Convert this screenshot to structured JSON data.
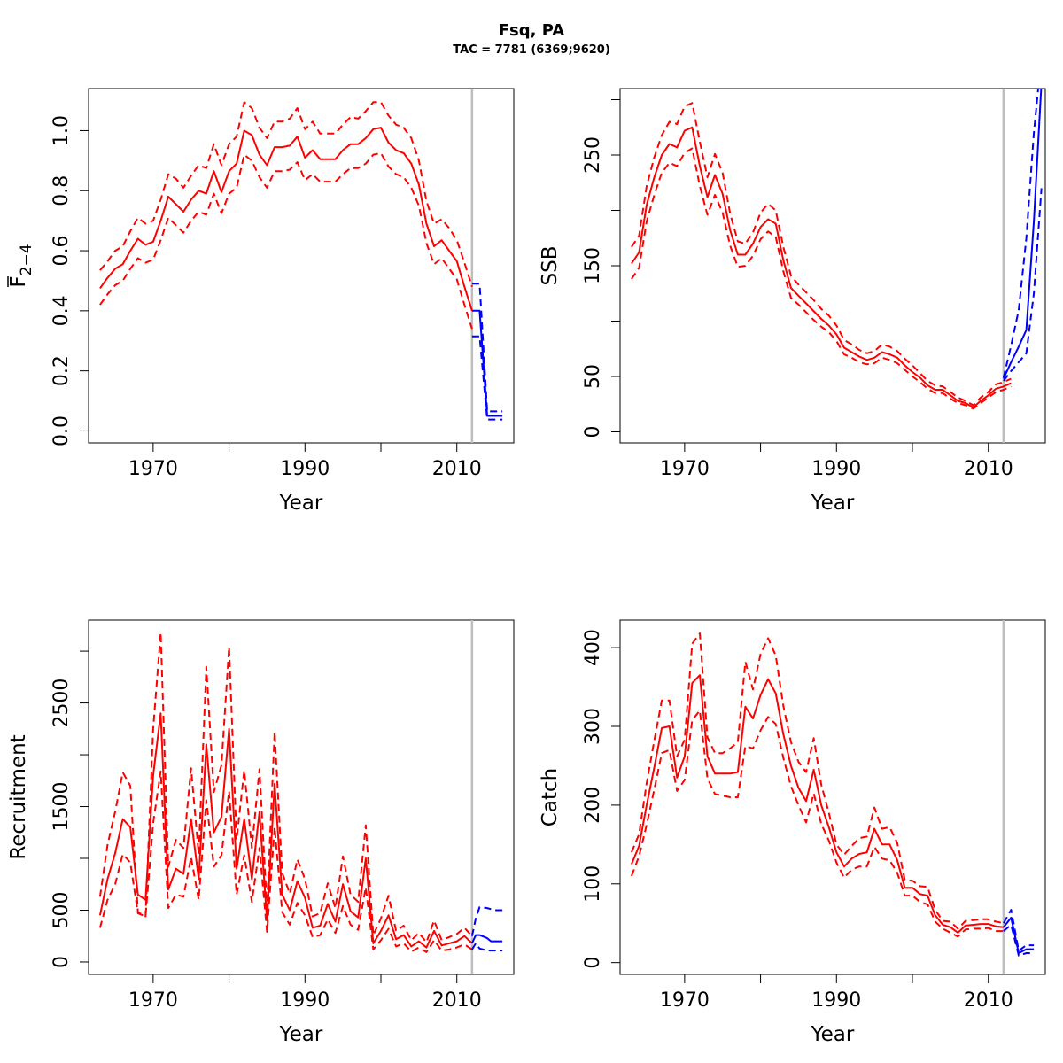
{
  "figure": {
    "title": "Fsq, PA",
    "subtitle": "TAC = 7781 (6369;9620)"
  },
  "colors": {
    "history": "#ff0000",
    "forecast": "#0000ff",
    "divider": "#bebebe",
    "axis": "#000000"
  },
  "chart_data": [
    {
      "id": "fbar",
      "type": "line",
      "xlabel": "Year",
      "ylabel_main": "F",
      "ylabel_sub": "2−4",
      "ylabel_overbar": true,
      "xlim": [
        1961.5,
        2017.5
      ],
      "ylim": [
        -0.04,
        1.14
      ],
      "xticks": [
        1960,
        1970,
        1980,
        1990,
        2000,
        2010
      ],
      "xtick_labels": [
        "",
        "1970",
        "",
        "1990",
        "",
        "2010"
      ],
      "yticks": [
        0,
        0.2,
        0.4,
        0.6,
        0.8,
        1.0
      ],
      "ytick_labels": [
        "0.0",
        "0.2",
        "0.4",
        "0.6",
        "0.8",
        "1.0"
      ],
      "divider_x": 2012,
      "series": [
        {
          "role": "history",
          "style": "solid",
          "x_start": 1963,
          "values": [
            0.475,
            0.51,
            0.54,
            0.555,
            0.6,
            0.64,
            0.62,
            0.63,
            0.7,
            0.78,
            0.755,
            0.73,
            0.77,
            0.8,
            0.79,
            0.865,
            0.795,
            0.865,
            0.89,
            1.0,
            0.985,
            0.92,
            0.885,
            0.945,
            0.945,
            0.95,
            0.98,
            0.91,
            0.935,
            0.905,
            0.905,
            0.905,
            0.935,
            0.955,
            0.955,
            0.975,
            1.005,
            1.01,
            0.96,
            0.935,
            0.925,
            0.89,
            0.82,
            0.69,
            0.615,
            0.635,
            0.6,
            0.565,
            0.48,
            0.4
          ]
        },
        {
          "role": "history",
          "style": "dashed",
          "x_start": 1963,
          "values": [
            0.535,
            0.565,
            0.6,
            0.615,
            0.665,
            0.71,
            0.69,
            0.7,
            0.77,
            0.855,
            0.84,
            0.81,
            0.85,
            0.885,
            0.875,
            0.955,
            0.885,
            0.955,
            0.98,
            1.095,
            1.075,
            1.01,
            0.975,
            1.03,
            1.03,
            1.04,
            1.075,
            1.005,
            1.03,
            0.99,
            0.99,
            0.99,
            1.02,
            1.045,
            1.04,
            1.065,
            1.095,
            1.095,
            1.05,
            1.02,
            1.01,
            0.975,
            0.9,
            0.765,
            0.69,
            0.705,
            0.675,
            0.635,
            0.56,
            0.48
          ]
        },
        {
          "role": "history",
          "style": "dashed",
          "x_start": 1963,
          "values": [
            0.42,
            0.455,
            0.485,
            0.5,
            0.54,
            0.575,
            0.56,
            0.57,
            0.635,
            0.71,
            0.685,
            0.66,
            0.7,
            0.73,
            0.72,
            0.79,
            0.725,
            0.79,
            0.81,
            0.92,
            0.9,
            0.845,
            0.81,
            0.865,
            0.865,
            0.87,
            0.895,
            0.835,
            0.855,
            0.83,
            0.83,
            0.83,
            0.855,
            0.875,
            0.875,
            0.89,
            0.92,
            0.925,
            0.88,
            0.855,
            0.845,
            0.81,
            0.75,
            0.625,
            0.555,
            0.575,
            0.54,
            0.505,
            0.42,
            0.34
          ]
        },
        {
          "role": "forecast",
          "style": "solid",
          "x_points": [
            2012,
            2012,
            2013,
            2013,
            2014,
            2014,
            2016
          ],
          "values": [
            0.4,
            0.4,
            0.4,
            0.4,
            0.05,
            0.05,
            0.05
          ]
        },
        {
          "role": "forecast",
          "style": "dashed",
          "x_points": [
            2012,
            2012,
            2013,
            2013,
            2014,
            2014,
            2016
          ],
          "values": [
            0.49,
            0.49,
            0.49,
            0.49,
            0.065,
            0.065,
            0.065
          ]
        },
        {
          "role": "forecast",
          "style": "dashed",
          "x_points": [
            2012,
            2012,
            2013,
            2013,
            2014,
            2014,
            2016
          ],
          "values": [
            0.315,
            0.315,
            0.315,
            0.315,
            0.038,
            0.038,
            0.038
          ]
        }
      ]
    },
    {
      "id": "ssb",
      "type": "line",
      "xlabel": "Year",
      "ylabel": "SSB",
      "xlim": [
        1961.5,
        2017.5
      ],
      "ylim": [
        -10,
        310
      ],
      "xticks": [
        1960,
        1970,
        1980,
        1990,
        2000,
        2010
      ],
      "xtick_labels": [
        "",
        "1970",
        "",
        "1990",
        "",
        "2010"
      ],
      "yticks": [
        0,
        50,
        100,
        150,
        200,
        250,
        300
      ],
      "ytick_labels": [
        "0",
        "50",
        "",
        "150",
        "",
        "250",
        ""
      ],
      "divider_x": 2012,
      "series": [
        {
          "role": "history",
          "style": "solid",
          "x_start": 1963,
          "values": [
            152,
            162,
            205,
            230,
            250,
            260,
            257,
            272,
            275,
            240,
            212,
            232,
            215,
            182,
            160,
            160,
            170,
            185,
            192,
            188,
            155,
            130,
            123,
            116,
            109,
            102,
            96,
            88,
            76,
            72,
            68,
            65,
            67,
            72,
            70,
            67,
            60,
            54,
            49,
            42,
            38,
            38,
            33,
            28,
            26,
            22,
            28,
            33,
            39,
            41,
            44
          ]
        },
        {
          "role": "history",
          "style": "dashed",
          "x_start": 1963,
          "values": [
            167,
            177,
            222,
            248,
            268,
            280,
            278,
            294,
            297,
            262,
            230,
            251,
            234,
            197,
            172,
            170,
            180,
            198,
            206,
            200,
            167,
            141,
            133,
            126,
            119,
            111,
            105,
            96,
            83,
            79,
            74,
            71,
            73,
            79,
            77,
            73,
            66,
            60,
            53,
            46,
            42,
            41,
            36,
            31,
            28,
            24,
            31,
            36,
            43,
            45,
            48
          ]
        },
        {
          "role": "history",
          "style": "dashed",
          "x_start": 1963,
          "values": [
            138,
            148,
            190,
            214,
            234,
            243,
            240,
            252,
            256,
            222,
            196,
            214,
            198,
            168,
            149,
            150,
            159,
            174,
            181,
            176,
            145,
            121,
            115,
            108,
            101,
            95,
            90,
            82,
            70,
            67,
            63,
            61,
            62,
            67,
            65,
            62,
            56,
            50,
            45,
            39,
            35,
            35,
            30,
            26,
            24,
            21,
            26,
            31,
            36,
            38,
            41
          ]
        },
        {
          "role": "history",
          "style": "solid",
          "x_points": [
            2012
          ],
          "values": [
            48
          ]
        },
        {
          "role": "forecast",
          "style": "solid",
          "x_points": [
            2012,
            2013,
            2014,
            2015,
            2016,
            2017
          ],
          "values": [
            48,
            63,
            77,
            92,
            190,
            315
          ]
        },
        {
          "role": "forecast",
          "style": "dashed",
          "x_points": [
            2012,
            2013,
            2014,
            2015,
            2016,
            2017
          ],
          "values": [
            49,
            78,
            110,
            175,
            270,
            340
          ]
        },
        {
          "role": "forecast",
          "style": "dashed",
          "x_points": [
            2012,
            2013,
            2014,
            2015,
            2016,
            2017
          ],
          "values": [
            46,
            55,
            63,
            71,
            125,
            220
          ]
        }
      ]
    },
    {
      "id": "recruitment",
      "type": "line",
      "xlabel": "Year",
      "ylabel": "Recruitment",
      "xlim": [
        1961.5,
        2017.5
      ],
      "ylim": [
        -120,
        3300
      ],
      "xticks": [
        1960,
        1970,
        1980,
        1990,
        2000,
        2010
      ],
      "xtick_labels": [
        "",
        "1970",
        "",
        "1990",
        "",
        "2010"
      ],
      "yticks": [
        0,
        500,
        1000,
        1500,
        2000,
        2500,
        3000
      ],
      "ytick_labels": [
        "0",
        "500",
        "",
        "1500",
        "",
        "2500",
        ""
      ],
      "divider_x": 2012,
      "series": [
        {
          "role": "history",
          "style": "solid",
          "x_start": 1963,
          "values": [
            450,
            800,
            1050,
            1380,
            1300,
            650,
            600,
            1800,
            2400,
            700,
            900,
            850,
            1380,
            800,
            2100,
            1250,
            1400,
            2250,
            900,
            1380,
            800,
            1450,
            400,
            1720,
            650,
            500,
            780,
            620,
            330,
            350,
            560,
            390,
            750,
            490,
            430,
            1000,
            180,
            300,
            450,
            220,
            260,
            150,
            200,
            140,
            300,
            160,
            180,
            200,
            250,
            180
          ]
        },
        {
          "role": "history",
          "style": "dashed",
          "x_start": 1963,
          "values": [
            630,
            1130,
            1450,
            1830,
            1700,
            480,
            440,
            2250,
            3180,
            920,
            1180,
            1100,
            1870,
            1040,
            2850,
            1640,
            1900,
            3040,
            1180,
            1850,
            1100,
            1860,
            520,
            2220,
            860,
            660,
            990,
            800,
            440,
            470,
            760,
            520,
            1020,
            650,
            580,
            1320,
            260,
            420,
            640,
            300,
            350,
            210,
            280,
            190,
            400,
            210,
            240,
            270,
            330,
            250
          ]
        },
        {
          "role": "history",
          "style": "dashed",
          "x_start": 1963,
          "values": [
            330,
            600,
            750,
            1040,
            960,
            470,
            440,
            1340,
            1840,
            520,
            650,
            630,
            1010,
            600,
            1560,
            920,
            1030,
            1650,
            650,
            1030,
            580,
            1100,
            290,
            1300,
            480,
            360,
            570,
            450,
            240,
            260,
            410,
            280,
            540,
            360,
            310,
            720,
            120,
            210,
            320,
            150,
            180,
            100,
            140,
            95,
            210,
            110,
            120,
            140,
            170,
            120
          ]
        },
        {
          "role": "forecast",
          "style": "solid",
          "x_points": [
            2012,
            2012.5,
            2013,
            2014,
            2014.5,
            2016
          ],
          "values": [
            180,
            260,
            260,
            230,
            200,
            200
          ]
        },
        {
          "role": "forecast",
          "style": "dashed",
          "x_points": [
            2012,
            2012.5,
            2013,
            2014,
            2015,
            2016
          ],
          "values": [
            250,
            420,
            530,
            520,
            500,
            500
          ]
        },
        {
          "role": "forecast",
          "style": "dashed",
          "x_points": [
            2012,
            2012.5,
            2013,
            2014,
            2015,
            2016
          ],
          "values": [
            120,
            180,
            130,
            110,
            110,
            110
          ]
        }
      ]
    },
    {
      "id": "catch",
      "type": "line",
      "xlabel": "Year",
      "ylabel": "Catch",
      "xlim": [
        1961.5,
        2017.5
      ],
      "ylim": [
        -15,
        435
      ],
      "xticks": [
        1960,
        1970,
        1980,
        1990,
        2000,
        2010
      ],
      "xtick_labels": [
        "",
        "1970",
        "",
        "1990",
        "",
        "2010"
      ],
      "yticks": [
        0,
        100,
        200,
        300,
        400
      ],
      "ytick_labels": [
        "0",
        "100",
        "200",
        "300",
        "400"
      ],
      "divider_x": 2012,
      "series": [
        {
          "role": "history",
          "style": "solid",
          "x_start": 1963,
          "values": [
            125,
            148,
            200,
            248,
            298,
            300,
            235,
            262,
            355,
            365,
            262,
            240,
            240,
            240,
            242,
            325,
            310,
            340,
            360,
            342,
            290,
            250,
            222,
            205,
            245,
            200,
            172,
            140,
            122,
            132,
            138,
            140,
            170,
            150,
            150,
            130,
            95,
            95,
            87,
            85,
            60,
            48,
            45,
            38,
            47,
            48,
            49,
            49,
            46,
            45
          ]
        },
        {
          "role": "history",
          "style": "dashed",
          "x_start": 1963,
          "values": [
            140,
            163,
            228,
            282,
            333,
            333,
            262,
            283,
            405,
            418,
            286,
            266,
            266,
            272,
            280,
            382,
            347,
            392,
            412,
            390,
            326,
            280,
            255,
            242,
            285,
            226,
            190,
            150,
            137,
            148,
            158,
            160,
            197,
            170,
            172,
            152,
            105,
            104,
            97,
            96,
            67,
            53,
            52,
            43,
            53,
            54,
            55,
            55,
            52,
            50
          ]
        },
        {
          "role": "history",
          "style": "dashed",
          "x_start": 1963,
          "values": [
            110,
            135,
            175,
            220,
            266,
            270,
            218,
            232,
            308,
            320,
            234,
            214,
            212,
            210,
            210,
            275,
            272,
            295,
            312,
            303,
            260,
            224,
            200,
            178,
            215,
            176,
            155,
            127,
            108,
            118,
            122,
            122,
            147,
            132,
            130,
            114,
            85,
            85,
            77,
            74,
            52,
            43,
            38,
            33,
            42,
            43,
            43,
            44,
            40,
            40
          ]
        },
        {
          "role": "forecast",
          "style": "solid",
          "x_points": [
            2012,
            2013,
            2014,
            2015,
            2016
          ],
          "values": [
            45,
            57,
            12,
            17,
            17
          ]
        },
        {
          "role": "forecast",
          "style": "dashed",
          "x_points": [
            2012,
            2013,
            2014,
            2015,
            2016
          ],
          "values": [
            50,
            67,
            15,
            22,
            22
          ]
        },
        {
          "role": "forecast",
          "style": "dashed",
          "x_points": [
            2012,
            2013,
            2014,
            2015,
            2016
          ],
          "values": [
            40,
            48,
            9,
            12,
            12
          ]
        }
      ]
    }
  ]
}
